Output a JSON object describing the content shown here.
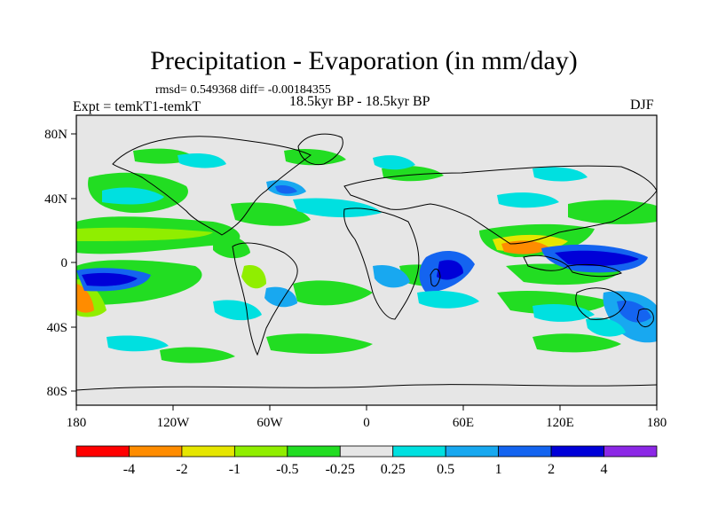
{
  "title": "Precipitation - Evaporation (in mm/day)",
  "stats_line": "rmsd= 0.549368 diff= -0.00184355",
  "experiment_label": "Expt = temkT1-temkT",
  "period_label": "18.5kyr BP - 18.5kyr BP",
  "season_label": "DJF",
  "axes": {
    "lat_labels": [
      "80N",
      "40N",
      "0",
      "40S",
      "80S"
    ],
    "lon_labels": [
      "180",
      "120W",
      "60W",
      "0",
      "60E",
      "120E",
      "180"
    ]
  },
  "colorbar": {
    "labels": [
      "-4",
      "-2",
      "-1",
      "-0.5",
      "-0.25",
      "0.25",
      "0.5",
      "1",
      "2",
      "4"
    ],
    "colors": [
      "#ff0000",
      "#ff8c00",
      "#e6e600",
      "#90ee00",
      "#22dd22",
      "#e6e6e6",
      "#00e0e0",
      "#18a8f0",
      "#1464f0",
      "#0000d8",
      "#8c28e6"
    ]
  },
  "colors": {
    "ocean_neutral": "#e6e6e6",
    "coast": "#000000"
  }
}
